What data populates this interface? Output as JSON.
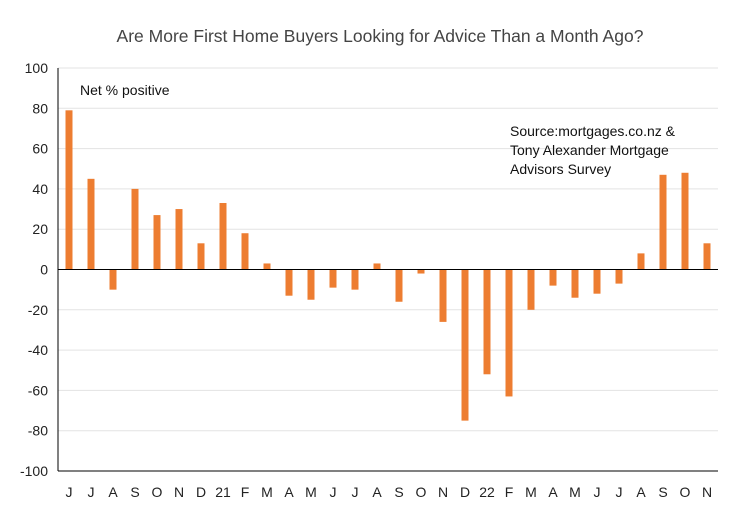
{
  "chart_data": {
    "type": "bar",
    "title": "Are More First Home Buyers Looking for Advice Than a Month Ago?",
    "ylabel_note": "Net % positive",
    "source_lines": [
      "Source:mortgages.co.nz  &",
      "Tony Alexander  Mortgage",
      "Advisors Survey"
    ],
    "categories": [
      "J",
      "J",
      "A",
      "S",
      "O",
      "N",
      "D",
      "21",
      "F",
      "M",
      "A",
      "M",
      "J",
      "J",
      "A",
      "S",
      "O",
      "N",
      "D",
      "22",
      "F",
      "M",
      "A",
      "M",
      "J",
      "J",
      "A",
      "S",
      "O",
      "N"
    ],
    "values": [
      79,
      45,
      -10,
      40,
      27,
      30,
      13,
      33,
      18,
      3,
      -13,
      -15,
      -9,
      -10,
      3,
      -16,
      -2,
      -26,
      -75,
      -52,
      -63,
      -20,
      -8,
      -14,
      -12,
      -7,
      8,
      47,
      48,
      13
    ],
    "ylim": [
      -100,
      100
    ],
    "yticks": [
      100,
      80,
      60,
      40,
      20,
      0,
      -20,
      -40,
      -60,
      -80,
      -100
    ],
    "bar_color": "#ED7D31",
    "grid": true
  }
}
